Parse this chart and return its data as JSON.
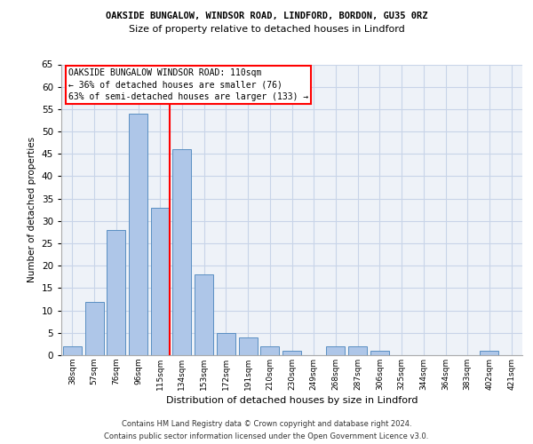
{
  "title_line1": "OAKSIDE BUNGALOW, WINDSOR ROAD, LINDFORD, BORDON, GU35 0RZ",
  "title_line2": "Size of property relative to detached houses in Lindford",
  "xlabel": "Distribution of detached houses by size in Lindford",
  "ylabel": "Number of detached properties",
  "categories": [
    "38sqm",
    "57sqm",
    "76sqm",
    "96sqm",
    "115sqm",
    "134sqm",
    "153sqm",
    "172sqm",
    "191sqm",
    "210sqm",
    "230sqm",
    "249sqm",
    "268sqm",
    "287sqm",
    "306sqm",
    "325sqm",
    "344sqm",
    "364sqm",
    "383sqm",
    "402sqm",
    "421sqm"
  ],
  "values": [
    2,
    12,
    28,
    54,
    33,
    46,
    18,
    5,
    4,
    2,
    1,
    0,
    2,
    2,
    1,
    0,
    0,
    0,
    0,
    1,
    0
  ],
  "bar_color": "#aec6e8",
  "bar_edge_color": "#5a8fc2",
  "grid_color": "#c8d4e8",
  "background_color": "#eef2f8",
  "vline_index": 4,
  "vline_color": "red",
  "annotation_text": "OAKSIDE BUNGALOW WINDSOR ROAD: 110sqm\n← 36% of detached houses are smaller (76)\n63% of semi-detached houses are larger (133) →",
  "annotation_box_color": "white",
  "annotation_box_edge": "red",
  "ylim": [
    0,
    65
  ],
  "yticks": [
    0,
    5,
    10,
    15,
    20,
    25,
    30,
    35,
    40,
    45,
    50,
    55,
    60,
    65
  ],
  "footer_line1": "Contains HM Land Registry data © Crown copyright and database right 2024.",
  "footer_line2": "Contains public sector information licensed under the Open Government Licence v3.0."
}
